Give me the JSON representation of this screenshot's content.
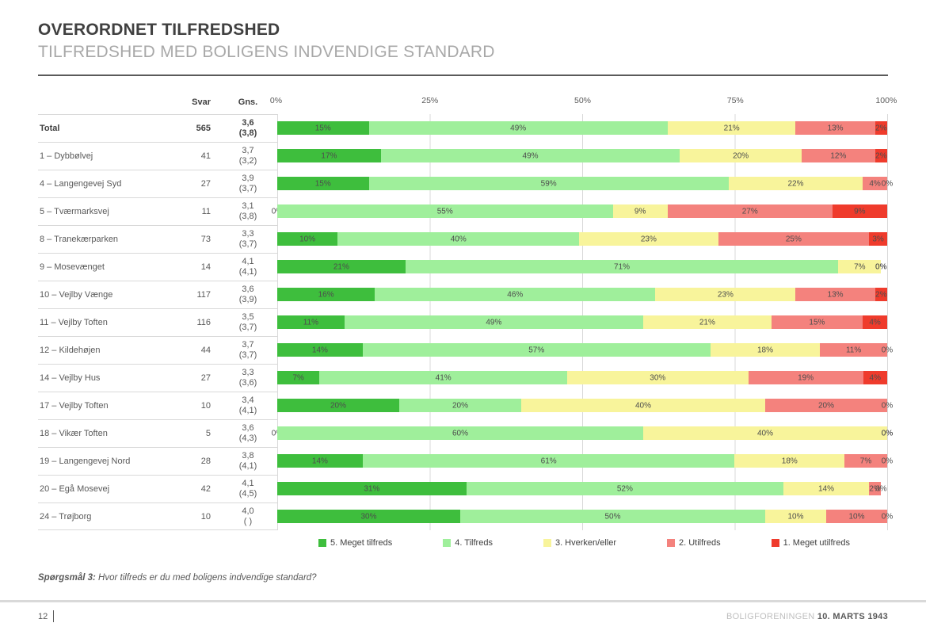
{
  "title": "OVERORDNET TILFREDSHED",
  "subtitle": "TILFREDSHED MED BOLIGENS INDVENDIGE STANDARD",
  "table": {
    "col_svar": "Svar",
    "col_gns": "Gns."
  },
  "chart_data": {
    "type": "bar",
    "orientation": "horizontal",
    "stacked": true,
    "xlim": [
      0,
      100
    ],
    "axis_ticks": [
      "0%",
      "25%",
      "50%",
      "75%",
      "100%"
    ],
    "grid": true,
    "legend_position": "bottom",
    "legend": [
      {
        "label": "5. Meget tilfreds",
        "color": "#3EBE3D"
      },
      {
        "label": "4. Tilfreds",
        "color": "#9FEF9B"
      },
      {
        "label": "3. Hverken/eller",
        "color": "#F8F49B"
      },
      {
        "label": "2. Utilfreds",
        "color": "#F4827D"
      },
      {
        "label": "1. Meget utilfreds",
        "color": "#EF3B2C"
      }
    ],
    "rows": [
      {
        "label": "Total",
        "svar": "565",
        "gns": "3,6",
        "gns_prev": "(3,8)",
        "bold": true,
        "values": [
          15,
          49,
          21,
          13,
          2
        ]
      },
      {
        "label": "1 – Dybbølvej",
        "svar": "41",
        "gns": "3,7",
        "gns_prev": "(3,2)",
        "bold": false,
        "values": [
          17,
          49,
          20,
          12,
          2
        ]
      },
      {
        "label": "4 – Langengevej Syd",
        "svar": "27",
        "gns": "3,9",
        "gns_prev": "(3,7)",
        "bold": false,
        "values": [
          15,
          59,
          22,
          4,
          0
        ]
      },
      {
        "label": "5 – Tværmarksvej",
        "svar": "11",
        "gns": "3,1",
        "gns_prev": "(3,8)",
        "bold": false,
        "values": [
          0,
          55,
          9,
          27,
          9
        ]
      },
      {
        "label": "8 – Tranekærparken",
        "svar": "73",
        "gns": "3,3",
        "gns_prev": "(3,7)",
        "bold": false,
        "values": [
          10,
          40,
          23,
          25,
          3
        ]
      },
      {
        "label": "9 – Mosevænget",
        "svar": "14",
        "gns": "4,1",
        "gns_prev": "(4,1)",
        "bold": false,
        "values": [
          21,
          71,
          7,
          0,
          0
        ]
      },
      {
        "label": "10 – Vejlby Vænge",
        "svar": "117",
        "gns": "3,6",
        "gns_prev": "(3,9)",
        "bold": false,
        "values": [
          16,
          46,
          23,
          13,
          2
        ]
      },
      {
        "label": "11 – Vejlby Toften",
        "svar": "116",
        "gns": "3,5",
        "gns_prev": "(3,7)",
        "bold": false,
        "values": [
          11,
          49,
          21,
          15,
          4
        ]
      },
      {
        "label": "12 – Kildehøjen",
        "svar": "44",
        "gns": "3,7",
        "gns_prev": "(3,7)",
        "bold": false,
        "values": [
          14,
          57,
          18,
          11,
          0
        ]
      },
      {
        "label": "14 – Vejlby Hus",
        "svar": "27",
        "gns": "3,3",
        "gns_prev": "(3,6)",
        "bold": false,
        "values": [
          7,
          41,
          30,
          19,
          4
        ]
      },
      {
        "label": "17 – Vejlby Toften",
        "svar": "10",
        "gns": "3,4",
        "gns_prev": "(4,1)",
        "bold": false,
        "values": [
          20,
          20,
          40,
          20,
          0
        ]
      },
      {
        "label": "18 – Vikær Toften",
        "svar": "5",
        "gns": "3,6",
        "gns_prev": "(4,3)",
        "bold": false,
        "values": [
          0,
          60,
          40,
          0,
          0
        ]
      },
      {
        "label": "19 – Langengevej Nord",
        "svar": "28",
        "gns": "3,8",
        "gns_prev": "(4,1)",
        "bold": false,
        "values": [
          14,
          61,
          18,
          7,
          0
        ]
      },
      {
        "label": "20 – Egå Mosevej",
        "svar": "42",
        "gns": "4,1",
        "gns_prev": "(4,5)",
        "bold": false,
        "values": [
          31,
          52,
          14,
          2,
          0
        ]
      },
      {
        "label": "24 – Trøjborg",
        "svar": "10",
        "gns": "4,0",
        "gns_prev": "( )",
        "bold": false,
        "values": [
          30,
          50,
          10,
          10,
          0
        ]
      }
    ]
  },
  "footnote": {
    "prefix": "Spørgsmål 3:",
    "text": " Hvor tilfreds er du med boligens indvendige standard?"
  },
  "footer": {
    "page": "12",
    "org": "BOLIGFORENINGEN ",
    "date": "10. MARTS 1943"
  },
  "colors": {
    "grid_line": "#D9D9D9",
    "title_text": "#404040",
    "subtitle_text": "#A8A8A8",
    "body_text": "#595959",
    "footer_light": "#BFBFBF"
  }
}
